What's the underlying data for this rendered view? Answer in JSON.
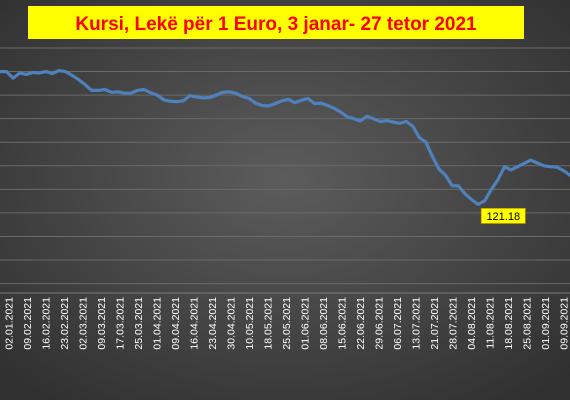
{
  "chart_data": {
    "type": "line",
    "title": "Kursi, Lekë për 1 Euro, 3 janar- 27 tetor 2021",
    "xlabel": "",
    "ylabel": "",
    "grid": true,
    "ylim": [
      119.3,
      124.5
    ],
    "x_tick_labels": [
      "02.01.2021",
      "09.02.2021",
      "16.02.2021",
      "23.02.2021",
      "02.03.2021",
      "09.03.2021",
      "17.03.2021",
      "25.03.2021",
      "01.04.2021",
      "09.04.2021",
      "16.04.2021",
      "23.04.2021",
      "30.04.2021",
      "10.05.2021",
      "18.05.2021",
      "25.05.2021",
      "01.06.2021",
      "08.06.2021",
      "15.06.2021",
      "22.06.2021",
      "29.06.2021",
      "06.07.2021",
      "13.07.2021",
      "21.07.2021",
      "28.07.2021",
      "04.08.2021",
      "11.08.2021",
      "18.08.2021",
      "25.08.2021",
      "01.09.2021",
      "09.09.2021"
    ],
    "series": [
      {
        "color": "#4f81bd",
        "values": [
          124.0,
          124.0,
          123.86,
          123.97,
          123.94,
          123.98,
          123.97,
          124.0,
          123.96,
          124.02,
          124.0,
          123.92,
          123.83,
          123.72,
          123.6,
          123.6,
          123.62,
          123.56,
          123.57,
          123.54,
          123.54,
          123.6,
          123.62,
          123.55,
          123.5,
          123.4,
          123.37,
          123.36,
          123.38,
          123.49,
          123.46,
          123.44,
          123.45,
          123.5,
          123.56,
          123.57,
          123.54,
          123.47,
          123.43,
          123.33,
          123.28,
          123.27,
          123.32,
          123.38,
          123.41,
          123.34,
          123.39,
          123.43,
          123.32,
          123.33,
          123.28,
          123.22,
          123.14,
          123.04,
          123.0,
          122.95,
          123.05,
          123.0,
          122.94,
          122.96,
          122.93,
          122.9,
          122.94,
          122.84,
          122.6,
          122.5,
          122.2,
          121.93,
          121.8,
          121.58,
          121.57,
          121.4,
          121.28,
          121.18,
          121.26,
          121.5,
          121.7,
          121.98,
          121.91,
          121.98,
          122.05,
          122.12,
          122.06,
          122.0,
          121.98,
          121.97,
          121.9,
          121.8
        ]
      }
    ],
    "annotations": [
      {
        "text": "121.18",
        "series_index": 0,
        "point_index": 73
      }
    ]
  }
}
